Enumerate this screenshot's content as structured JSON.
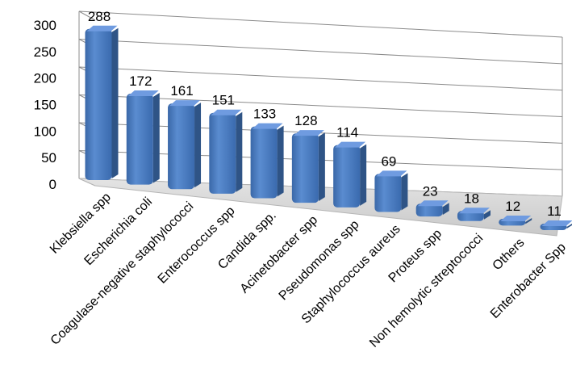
{
  "chart_data": {
    "type": "bar",
    "style": "3d-perspective column",
    "color": "#4f81bd",
    "grid": true,
    "legend": "none",
    "ylim": [
      0,
      300
    ],
    "yticks": [
      0,
      50,
      100,
      150,
      200,
      250,
      300
    ],
    "categories": [
      "Klebsiella spp",
      "Escherichia coli",
      "Coagulase-negative staphylococci",
      "Enterococcus spp",
      "Candida spp.",
      "Acinetobacter spp",
      "Pseudomonas spp",
      "Staphylococcus aureus",
      "Proteus spp",
      "Non hemolytic streptococci",
      "Others",
      "Enterobacter Spp"
    ],
    "values": [
      288,
      172,
      161,
      151,
      133,
      128,
      114,
      69,
      23,
      18,
      12,
      11
    ]
  }
}
